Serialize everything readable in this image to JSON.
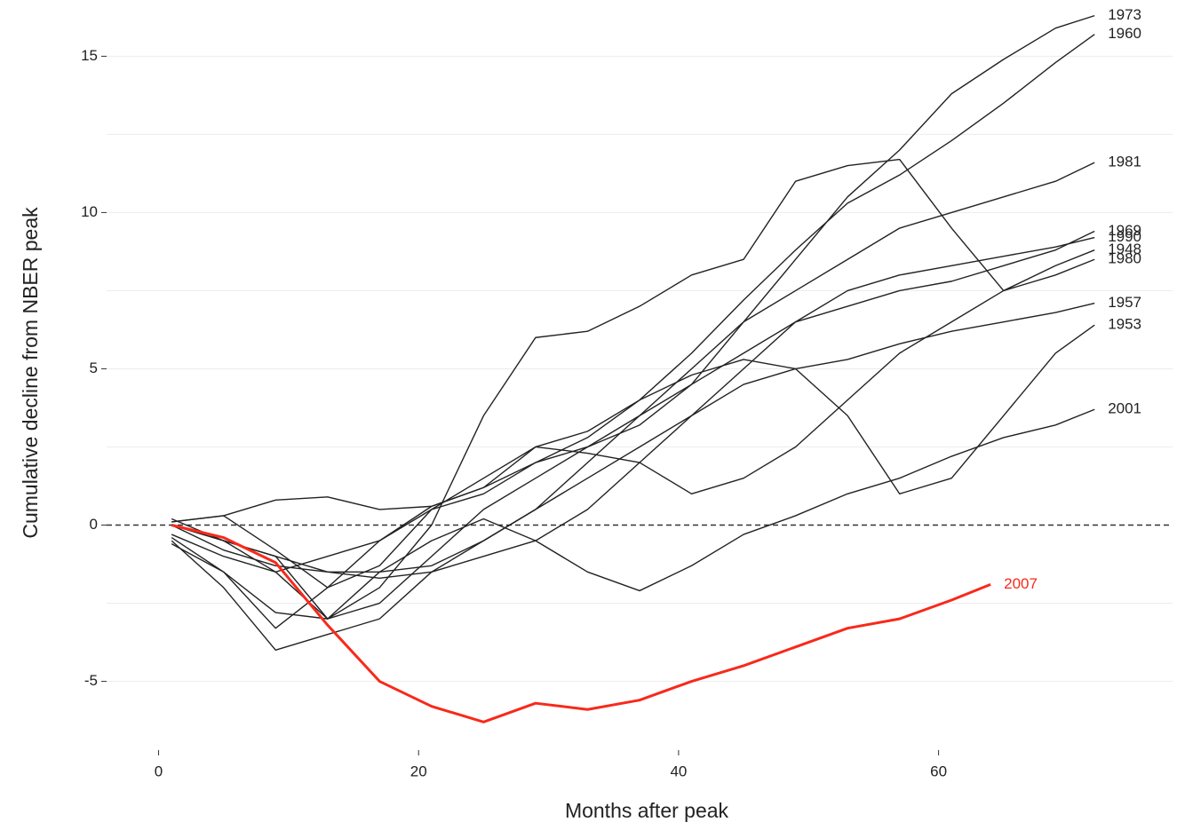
{
  "chart_data": {
    "type": "line",
    "xlabel": "Months after peak",
    "ylabel": "Cumulative decline from NBER peak",
    "xlim": [
      -4,
      78
    ],
    "ylim": [
      -7.2,
      16.8
    ],
    "xticks": [
      0,
      20,
      40,
      60
    ],
    "yticks": [
      -5,
      0,
      5,
      10,
      15
    ],
    "ygrid": [
      -5,
      -2.5,
      2.5,
      5,
      7.5,
      10,
      12.5,
      15
    ],
    "reference_line": 0,
    "series": [
      {
        "name": "1973",
        "color": "#222222",
        "x": [
          1,
          5,
          9,
          13,
          17,
          21,
          25,
          29,
          33,
          37,
          41,
          45,
          49,
          53,
          57,
          61,
          65,
          69,
          72
        ],
        "values": [
          0.1,
          0.3,
          -0.8,
          -2.0,
          -1.3,
          0.5,
          1.0,
          2.0,
          2.5,
          3.2,
          4.5,
          6.5,
          8.5,
          10.5,
          12.0,
          13.8,
          14.9,
          15.9,
          16.3
        ]
      },
      {
        "name": "1960",
        "color": "#222222",
        "x": [
          1,
          5,
          9,
          13,
          17,
          21,
          25,
          29,
          33,
          37,
          41,
          45,
          49,
          53,
          57,
          61,
          65,
          69,
          72
        ],
        "values": [
          0.2,
          -0.5,
          -1.5,
          -1.0,
          -0.5,
          0.6,
          1.2,
          2.0,
          2.8,
          4.0,
          5.5,
          7.2,
          8.8,
          10.3,
          11.2,
          12.3,
          13.5,
          14.8,
          15.7
        ]
      },
      {
        "name": "1981",
        "color": "#222222",
        "x": [
          1,
          5,
          9,
          13,
          17,
          21,
          25,
          29,
          33,
          37,
          41,
          45,
          49,
          53,
          57,
          61,
          65,
          69,
          72
        ],
        "values": [
          0,
          -0.8,
          -1.3,
          -1.5,
          -1.5,
          -1.3,
          -0.5,
          0.5,
          2.0,
          3.5,
          5.0,
          6.5,
          7.5,
          8.5,
          9.5,
          10.0,
          10.5,
          11.0,
          11.6
        ]
      },
      {
        "name": "1969",
        "color": "#222222",
        "x": [
          1,
          5,
          9,
          13,
          17,
          21,
          25,
          29,
          33,
          37,
          41,
          45,
          49,
          53,
          57,
          61,
          65,
          69,
          72
        ],
        "values": [
          -0.3,
          -1.0,
          -1.5,
          -3.0,
          -2.5,
          -1.0,
          0.5,
          1.5,
          2.5,
          3.5,
          4.5,
          5.5,
          6.5,
          7.0,
          7.5,
          7.8,
          8.3,
          8.8,
          9.4
        ]
      },
      {
        "name": "1990",
        "color": "#222222",
        "x": [
          1,
          5,
          9,
          13,
          17,
          21,
          25,
          29,
          33,
          37,
          41,
          45,
          49,
          53,
          57,
          61,
          65,
          69,
          72
        ],
        "values": [
          0,
          -0.5,
          -1.0,
          -1.5,
          -1.7,
          -1.5,
          -1.0,
          -0.5,
          0.5,
          2.0,
          3.5,
          5.0,
          6.5,
          7.5,
          8.0,
          8.3,
          8.6,
          8.9,
          9.2
        ]
      },
      {
        "name": "1948",
        "color": "#222222",
        "x": [
          1,
          5,
          9,
          13,
          17,
          21,
          25,
          29,
          33,
          37,
          41,
          45,
          49,
          53,
          57,
          61,
          65,
          69,
          72
        ],
        "values": [
          0.1,
          0.3,
          0.8,
          0.9,
          0.5,
          0.6,
          1.2,
          2.5,
          2.3,
          2.0,
          1.0,
          1.5,
          2.5,
          4.0,
          5.5,
          6.5,
          7.5,
          8.3,
          8.8
        ]
      },
      {
        "name": "1980",
        "color": "#222222",
        "x": [
          1,
          5,
          9,
          13,
          17,
          21,
          25,
          29,
          33,
          37,
          41,
          45,
          49,
          53,
          57,
          61,
          65,
          69,
          72
        ],
        "values": [
          0,
          -0.5,
          -1.0,
          -3.0,
          -2.0,
          0,
          3.5,
          6.0,
          6.2,
          7.0,
          8.0,
          8.5,
          11.0,
          11.5,
          11.7,
          9.5,
          7.5,
          8.0,
          8.5
        ]
      },
      {
        "name": "1957",
        "color": "#222222",
        "x": [
          1,
          5,
          9,
          13,
          17,
          21,
          25,
          29,
          33,
          37,
          41,
          45,
          49,
          53,
          57,
          61,
          65,
          69,
          72
        ],
        "values": [
          -0.5,
          -2.0,
          -4.0,
          -3.5,
          -3.0,
          -1.5,
          -0.5,
          0.5,
          1.5,
          2.5,
          3.5,
          4.5,
          5.0,
          5.3,
          5.8,
          6.2,
          6.5,
          6.8,
          7.1
        ]
      },
      {
        "name": "1953",
        "color": "#222222",
        "x": [
          1,
          5,
          9,
          13,
          17,
          21,
          25,
          29,
          33,
          37,
          41,
          45,
          49,
          53,
          57,
          61,
          65,
          69,
          72
        ],
        "values": [
          -0.4,
          -1.5,
          -3.3,
          -2.0,
          -0.5,
          0.5,
          1.5,
          2.5,
          3.0,
          4.0,
          4.8,
          5.3,
          5.0,
          3.5,
          1.0,
          1.5,
          3.5,
          5.5,
          6.4
        ]
      },
      {
        "name": "2001",
        "color": "#222222",
        "x": [
          1,
          5,
          9,
          13,
          17,
          21,
          25,
          29,
          33,
          37,
          41,
          45,
          49,
          53,
          57,
          61,
          65,
          69,
          72
        ],
        "values": [
          -0.6,
          -1.5,
          -2.8,
          -3.0,
          -1.5,
          -0.5,
          0.2,
          -0.5,
          -1.5,
          -2.1,
          -1.3,
          -0.3,
          0.3,
          1.0,
          1.5,
          2.2,
          2.8,
          3.2,
          3.7
        ]
      },
      {
        "name": "2007",
        "color": "#f8291a",
        "x": [
          1,
          5,
          9,
          13,
          17,
          21,
          25,
          29,
          33,
          37,
          41,
          45,
          49,
          53,
          57,
          61,
          64
        ],
        "values": [
          0,
          -0.4,
          -1.2,
          -3.2,
          -5.0,
          -5.8,
          -6.3,
          -5.7,
          -5.9,
          -5.6,
          -5.0,
          -4.5,
          -3.9,
          -3.3,
          -3.0,
          -2.4,
          -1.9
        ]
      }
    ]
  }
}
